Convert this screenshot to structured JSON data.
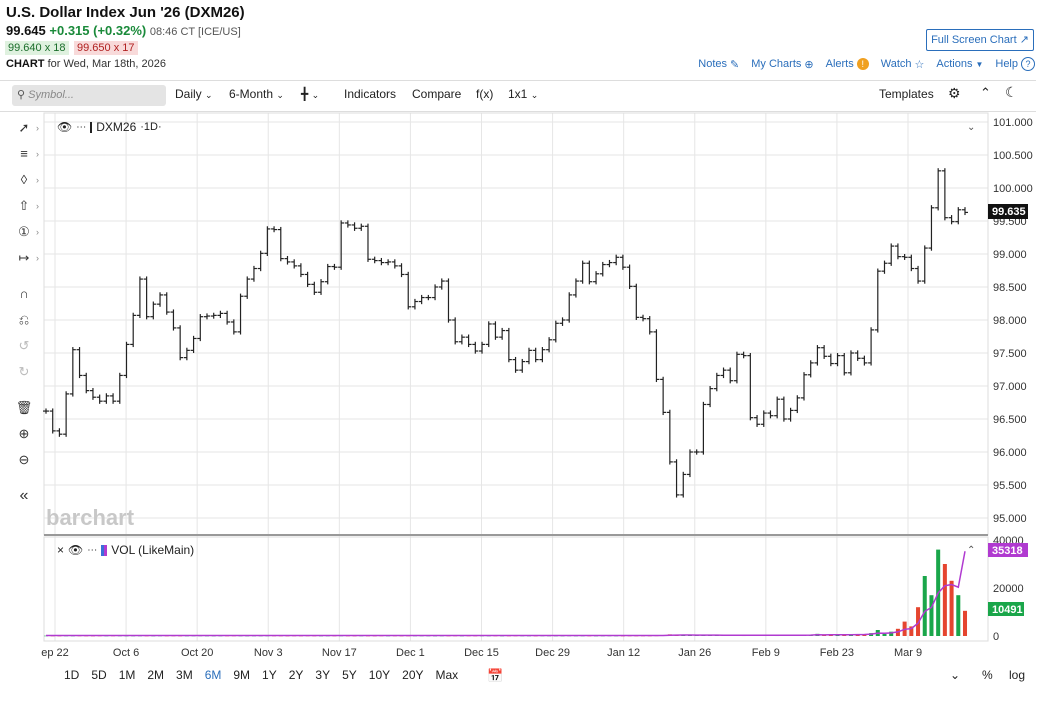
{
  "header": {
    "title": "U.S. Dollar Index Jun '26 (DXM26)",
    "last": "99.645",
    "change": "+0.315 (+0.32%)",
    "time": "08:46 CT [ICE/US]",
    "bid": "99.640 x 18",
    "ask": "99.650 x 17",
    "chart_label": "CHART",
    "chart_for": "for Wed, Mar 18th, 2026",
    "full_screen": "Full Screen Chart",
    "links": [
      "Notes",
      "My Charts",
      "Alerts",
      "Watch",
      "Actions",
      "Help"
    ]
  },
  "toolbar": {
    "search_placeholder": "Symbol...",
    "interval": "Daily",
    "range": "6-Month",
    "indicators": "Indicators",
    "compare": "Compare",
    "fx": "f(x)",
    "layout": "1x1",
    "templates": "Templates"
  },
  "legend": {
    "symbol": "DXM26",
    "interval": "·1D·",
    "volume": "VOL (LikeMain)"
  },
  "watermark": "barchart",
  "price_badge": "99.635",
  "vol_badge_ma": "35318",
  "vol_badge_cur": "10491",
  "ranges": [
    "1D",
    "5D",
    "1M",
    "2M",
    "3M",
    "6M",
    "9M",
    "1Y",
    "2Y",
    "3Y",
    "5Y",
    "10Y",
    "20Y",
    "Max"
  ],
  "active_range": "6M",
  "bottom_right": [
    "%",
    "log"
  ],
  "chart_data": [
    {
      "type": "ohlc",
      "x_tick_labels": [
        "ep 22",
        "Oct 6",
        "Oct 20",
        "Nov 3",
        "Nov 17",
        "Dec 1",
        "Dec 15",
        "Dec 29",
        "Jan 12",
        "Jan 26",
        "Feb 9",
        "Feb 23",
        "Mar 9"
      ],
      "y_tick_labels": [
        "101.000",
        "100.500",
        "100.000",
        "99.500",
        "99.000",
        "98.500",
        "98.000",
        "97.500",
        "97.000",
        "96.500",
        "96.000",
        "95.500",
        "95.000"
      ],
      "ylim": [
        95.0,
        101.0
      ],
      "last_value": 99.635,
      "closes": [
        96.62,
        96.32,
        96.27,
        96.88,
        97.55,
        97.16,
        96.93,
        96.83,
        96.77,
        96.85,
        96.77,
        97.16,
        97.63,
        98.07,
        98.62,
        98.05,
        98.24,
        98.38,
        98.12,
        97.88,
        97.43,
        97.54,
        97.72,
        98.05,
        98.06,
        98.07,
        98.1,
        97.97,
        97.82,
        98.36,
        98.62,
        98.78,
        99.01,
        99.38,
        99.37,
        98.93,
        98.88,
        98.82,
        98.69,
        98.54,
        98.42,
        98.58,
        98.81,
        98.8,
        99.47,
        99.44,
        99.39,
        99.42,
        98.92,
        98.9,
        98.87,
        98.88,
        98.82,
        98.69,
        98.2,
        98.28,
        98.34,
        98.34,
        98.5,
        98.59,
        98.0,
        97.67,
        97.74,
        97.63,
        97.53,
        97.63,
        97.94,
        97.74,
        97.84,
        97.4,
        97.24,
        97.37,
        97.54,
        97.4,
        97.55,
        97.7,
        97.95,
        98.0,
        98.38,
        98.59,
        98.86,
        98.58,
        98.7,
        98.84,
        98.87,
        98.95,
        98.8,
        98.51,
        98.04,
        98.02,
        97.82,
        97.1,
        96.6,
        95.85,
        95.35,
        95.66,
        96.0,
        96.0,
        96.72,
        96.96,
        97.16,
        97.24,
        97.08,
        97.48,
        97.46,
        96.52,
        96.42,
        96.59,
        96.55,
        96.8,
        96.5,
        96.63,
        96.82,
        97.17,
        97.35,
        97.58,
        97.45,
        97.34,
        97.46,
        97.2,
        97.5,
        97.42,
        97.35,
        97.85,
        98.74,
        98.86,
        99.12,
        98.96,
        98.95,
        98.78,
        98.59,
        99.09,
        99.7,
        100.26,
        99.55,
        99.49,
        99.67,
        99.63
      ],
      "volume": {
        "ylim": [
          0,
          40000
        ],
        "y_tick_labels": [
          "40000",
          "20000",
          "0"
        ],
        "values": [
          120,
          90,
          80,
          100,
          90,
          110,
          90,
          80,
          100,
          90,
          110,
          100,
          80,
          90,
          100,
          90,
          80,
          110,
          90,
          100,
          80,
          90,
          100,
          110,
          90,
          80,
          90,
          100,
          110,
          90,
          80,
          100,
          90,
          110,
          100,
          90,
          80,
          100,
          90,
          110,
          90,
          80,
          100,
          90,
          110,
          90,
          80,
          100,
          90,
          80,
          110,
          90,
          100,
          80,
          90,
          110,
          100,
          90,
          80,
          100,
          90,
          110,
          80,
          100,
          90,
          110,
          90,
          100,
          80,
          90,
          110,
          100,
          90,
          80,
          110,
          100,
          90,
          80,
          110,
          90,
          100,
          90,
          80,
          100,
          110,
          90,
          80,
          100,
          90,
          110,
          100,
          150,
          250,
          700,
          600,
          500,
          400,
          300,
          350,
          400,
          300,
          250,
          400,
          300,
          200,
          350,
          400,
          250,
          300,
          200,
          300,
          350,
          250,
          400,
          500,
          900,
          400,
          500,
          700,
          600,
          500,
          800,
          700,
          1200,
          2500,
          900,
          1800,
          3000,
          6000,
          4000,
          12000,
          25000,
          17000,
          36000,
          30000,
          23000,
          17000,
          10491
        ],
        "ma_label": 35318
      }
    }
  ]
}
